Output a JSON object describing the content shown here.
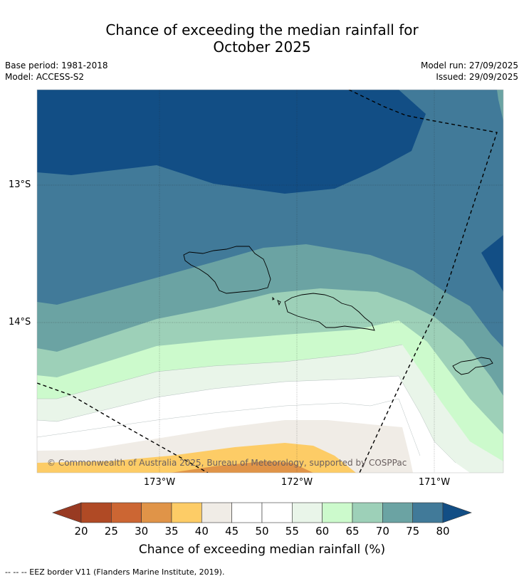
{
  "title_line1": "Chance of exceeding the median rainfall for",
  "title_line2": "October 2025",
  "meta_left": {
    "base_period": "Base period: 1981-2018",
    "model": "Model: ACCESS-S2"
  },
  "meta_right": {
    "model_run": "Model run: 27/09/2025",
    "issued": "Issued: 29/09/2025"
  },
  "lat_labels": [
    "13°S",
    "14°S"
  ],
  "lon_labels": [
    "173°W",
    "172°W",
    "171°W"
  ],
  "copyright": "© Commonwealth of Australia 2025, Bureau of Meteorology, supported by COSPPac",
  "colorbar": {
    "ticks": [
      "20",
      "25",
      "30",
      "35",
      "40",
      "45",
      "50",
      "55",
      "60",
      "65",
      "70",
      "75",
      "80"
    ],
    "label": "Chance of exceeding median rainfall (%)",
    "colors": [
      "#b04a25",
      "#cc6633",
      "#e09448",
      "#fdcc66",
      "#f0ece6",
      "#ffffff",
      "#ffffff",
      "#e9f5e9",
      "#ccfacc",
      "#9dd0b8",
      "#6ba3a3",
      "#417a99"
    ],
    "under_color": "#983a22",
    "over_color": "#124e85"
  },
  "eez_note": "--  --  -- EEZ border V11 (Flanders Marine Institute, 2019)."
}
